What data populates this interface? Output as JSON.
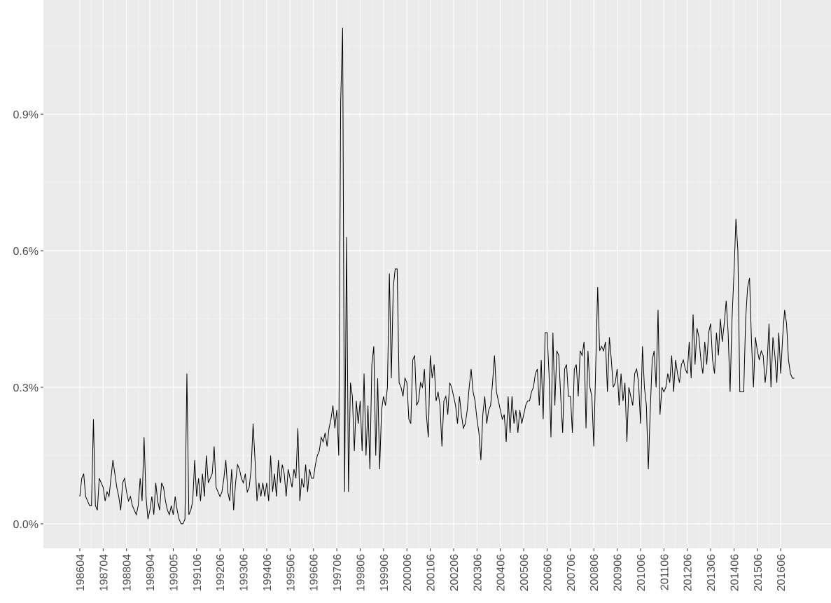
{
  "chart_data": {
    "type": "line",
    "color": "#000000",
    "ylim": [
      -0.054,
      1.151
    ],
    "yticks": [
      {
        "value": 0,
        "label": "0.0%"
      },
      {
        "value": 0.3,
        "label": "0.3%"
      },
      {
        "value": 0.6,
        "label": "0.6%"
      },
      {
        "value": 0.9,
        "label": "0.9%"
      }
    ],
    "grid": true,
    "categories": [
      "198604",
      null,
      null,
      null,
      null,
      null,
      null,
      null,
      null,
      null,
      null,
      null,
      "198704",
      null,
      null,
      null,
      null,
      null,
      null,
      null,
      null,
      null,
      null,
      null,
      "198804",
      null,
      null,
      null,
      null,
      null,
      null,
      null,
      null,
      null,
      null,
      null,
      "198904",
      null,
      null,
      null,
      null,
      null,
      null,
      null,
      null,
      null,
      null,
      null,
      "199005",
      null,
      null,
      null,
      null,
      null,
      null,
      null,
      null,
      null,
      null,
      null,
      "199106",
      null,
      null,
      null,
      null,
      null,
      null,
      null,
      null,
      null,
      null,
      null,
      "199206",
      null,
      null,
      null,
      null,
      null,
      null,
      null,
      null,
      null,
      null,
      null,
      "199306",
      null,
      null,
      null,
      null,
      null,
      null,
      null,
      null,
      null,
      null,
      null,
      "199406",
      null,
      null,
      null,
      null,
      null,
      null,
      null,
      null,
      null,
      null,
      null,
      "199506",
      null,
      null,
      null,
      null,
      null,
      null,
      null,
      null,
      null,
      null,
      null,
      "199606",
      null,
      null,
      null,
      null,
      null,
      null,
      null,
      null,
      null,
      null,
      null,
      "199706",
      null,
      null,
      null,
      null,
      null,
      null,
      null,
      null,
      null,
      null,
      null,
      "199806",
      null,
      null,
      null,
      null,
      null,
      null,
      null,
      null,
      null,
      null,
      null,
      "199906",
      null,
      null,
      null,
      null,
      null,
      null,
      null,
      null,
      null,
      null,
      null,
      "200006",
      null,
      null,
      null,
      null,
      null,
      null,
      null,
      null,
      null,
      null,
      null,
      "200106",
      null,
      null,
      null,
      null,
      null,
      null,
      null,
      null,
      null,
      null,
      null,
      "200206",
      null,
      null,
      null,
      null,
      null,
      null,
      null,
      null,
      null,
      null,
      null,
      "200306",
      null,
      null,
      null,
      null,
      null,
      null,
      null,
      null,
      null,
      null,
      null,
      "200406",
      null,
      null,
      null,
      null,
      null,
      null,
      null,
      null,
      null,
      null,
      null,
      "200506",
      null,
      null,
      null,
      null,
      null,
      null,
      null,
      null,
      null,
      null,
      null,
      "200606",
      null,
      null,
      null,
      null,
      null,
      null,
      null,
      null,
      null,
      null,
      null,
      "200706",
      null,
      null,
      null,
      null,
      null,
      null,
      null,
      null,
      null,
      null,
      null,
      "200806",
      null,
      null,
      null,
      null,
      null,
      null,
      null,
      null,
      null,
      null,
      null,
      "200906",
      null,
      null,
      null,
      null,
      null,
      null,
      null,
      null,
      null,
      null,
      null,
      "201006",
      null,
      null,
      null,
      null,
      null,
      null,
      null,
      null,
      null,
      null,
      null,
      "201106",
      null,
      null,
      null,
      null,
      null,
      null,
      null,
      null,
      null,
      null,
      null,
      "201206",
      null,
      null,
      null,
      null,
      null,
      null,
      null,
      null,
      null,
      null,
      null,
      "201306",
      null,
      null,
      null,
      null,
      null,
      null,
      null,
      null,
      null,
      null,
      null,
      "201406",
      null,
      null,
      null,
      null,
      null,
      null,
      null,
      null,
      null,
      null,
      null,
      "201506",
      null,
      null,
      null,
      null,
      null,
      null,
      null,
      null,
      null,
      null,
      null,
      "201606",
      null,
      null,
      null,
      null,
      null,
      null,
      null
    ],
    "values": [
      0.06,
      0.1,
      0.11,
      0.06,
      0.05,
      0.04,
      0.04,
      0.23,
      0.04,
      0.03,
      0.1,
      0.09,
      0.08,
      0.05,
      0.07,
      0.06,
      0.1,
      0.14,
      0.11,
      0.08,
      0.06,
      0.03,
      0.09,
      0.1,
      0.07,
      0.05,
      0.06,
      0.04,
      0.03,
      0.02,
      0.04,
      0.1,
      0.05,
      0.19,
      0.06,
      0.01,
      0.03,
      0.06,
      0.02,
      0.09,
      0.05,
      0.03,
      0.09,
      0.08,
      0.05,
      0.03,
      0.02,
      0.04,
      0.02,
      0.06,
      0.03,
      0.01,
      0.0,
      0.0,
      0.01,
      0.33,
      0.02,
      0.03,
      0.05,
      0.14,
      0.06,
      0.1,
      0.05,
      0.11,
      0.06,
      0.15,
      0.09,
      0.1,
      0.11,
      0.17,
      0.08,
      0.07,
      0.06,
      0.07,
      0.1,
      0.14,
      0.07,
      0.05,
      0.12,
      0.03,
      0.09,
      0.13,
      0.12,
      0.1,
      0.09,
      0.11,
      0.07,
      0.08,
      0.12,
      0.22,
      0.14,
      0.05,
      0.09,
      0.06,
      0.09,
      0.06,
      0.09,
      0.05,
      0.15,
      0.07,
      0.11,
      0.06,
      0.14,
      0.09,
      0.13,
      0.11,
      0.06,
      0.12,
      0.1,
      0.08,
      0.12,
      0.1,
      0.21,
      0.05,
      0.1,
      0.08,
      0.13,
      0.07,
      0.12,
      0.1,
      0.1,
      0.13,
      0.15,
      0.16,
      0.19,
      0.18,
      0.2,
      0.17,
      0.21,
      0.23,
      0.26,
      0.21,
      0.25,
      0.15,
      0.93,
      1.09,
      0.07,
      0.63,
      0.07,
      0.31,
      0.28,
      0.16,
      0.27,
      0.22,
      0.27,
      0.16,
      0.33,
      0.15,
      0.26,
      0.12,
      0.35,
      0.39,
      0.15,
      0.32,
      0.12,
      0.25,
      0.28,
      0.26,
      0.3,
      0.55,
      0.32,
      0.52,
      0.56,
      0.56,
      0.31,
      0.3,
      0.28,
      0.32,
      0.31,
      0.23,
      0.22,
      0.36,
      0.37,
      0.26,
      0.27,
      0.31,
      0.3,
      0.34,
      0.24,
      0.19,
      0.37,
      0.32,
      0.35,
      0.27,
      0.29,
      0.26,
      0.17,
      0.27,
      0.28,
      0.24,
      0.31,
      0.3,
      0.28,
      0.26,
      0.22,
      0.28,
      0.24,
      0.21,
      0.22,
      0.25,
      0.3,
      0.34,
      0.29,
      0.27,
      0.23,
      0.2,
      0.14,
      0.24,
      0.28,
      0.22,
      0.25,
      0.26,
      0.31,
      0.37,
      0.29,
      0.27,
      0.25,
      0.23,
      0.24,
      0.18,
      0.28,
      0.2,
      0.28,
      0.22,
      0.25,
      0.2,
      0.25,
      0.22,
      0.24,
      0.26,
      0.27,
      0.27,
      0.29,
      0.3,
      0.33,
      0.34,
      0.26,
      0.36,
      0.23,
      0.42,
      0.42,
      0.33,
      0.19,
      0.42,
      0.26,
      0.38,
      0.37,
      0.28,
      0.2,
      0.34,
      0.35,
      0.28,
      0.28,
      0.2,
      0.34,
      0.35,
      0.28,
      0.38,
      0.37,
      0.4,
      0.21,
      0.38,
      0.3,
      0.28,
      0.17,
      0.35,
      0.52,
      0.38,
      0.39,
      0.38,
      0.4,
      0.29,
      0.41,
      0.36,
      0.3,
      0.31,
      0.34,
      0.26,
      0.33,
      0.27,
      0.31,
      0.18,
      0.3,
      0.28,
      0.26,
      0.33,
      0.34,
      0.31,
      0.22,
      0.39,
      0.3,
      0.26,
      0.12,
      0.25,
      0.36,
      0.38,
      0.3,
      0.47,
      0.24,
      0.3,
      0.29,
      0.3,
      0.33,
      0.31,
      0.37,
      0.29,
      0.36,
      0.33,
      0.31,
      0.35,
      0.36,
      0.34,
      0.33,
      0.4,
      0.32,
      0.46,
      0.35,
      0.43,
      0.41,
      0.36,
      0.33,
      0.4,
      0.35,
      0.42,
      0.44,
      0.36,
      0.33,
      0.42,
      0.37,
      0.45,
      0.4,
      0.44,
      0.49,
      0.42,
      0.29,
      0.45,
      0.55,
      0.67,
      0.6,
      0.29,
      0.29,
      0.29,
      0.45,
      0.52,
      0.54,
      0.4,
      0.3,
      0.41,
      0.38,
      0.36,
      0.38,
      0.37,
      0.31,
      0.35,
      0.44,
      0.3,
      0.41,
      0.37,
      0.31,
      0.42,
      0.33,
      0.41,
      0.47,
      0.44,
      0.36,
      0.33,
      0.32,
      0.32
    ]
  }
}
